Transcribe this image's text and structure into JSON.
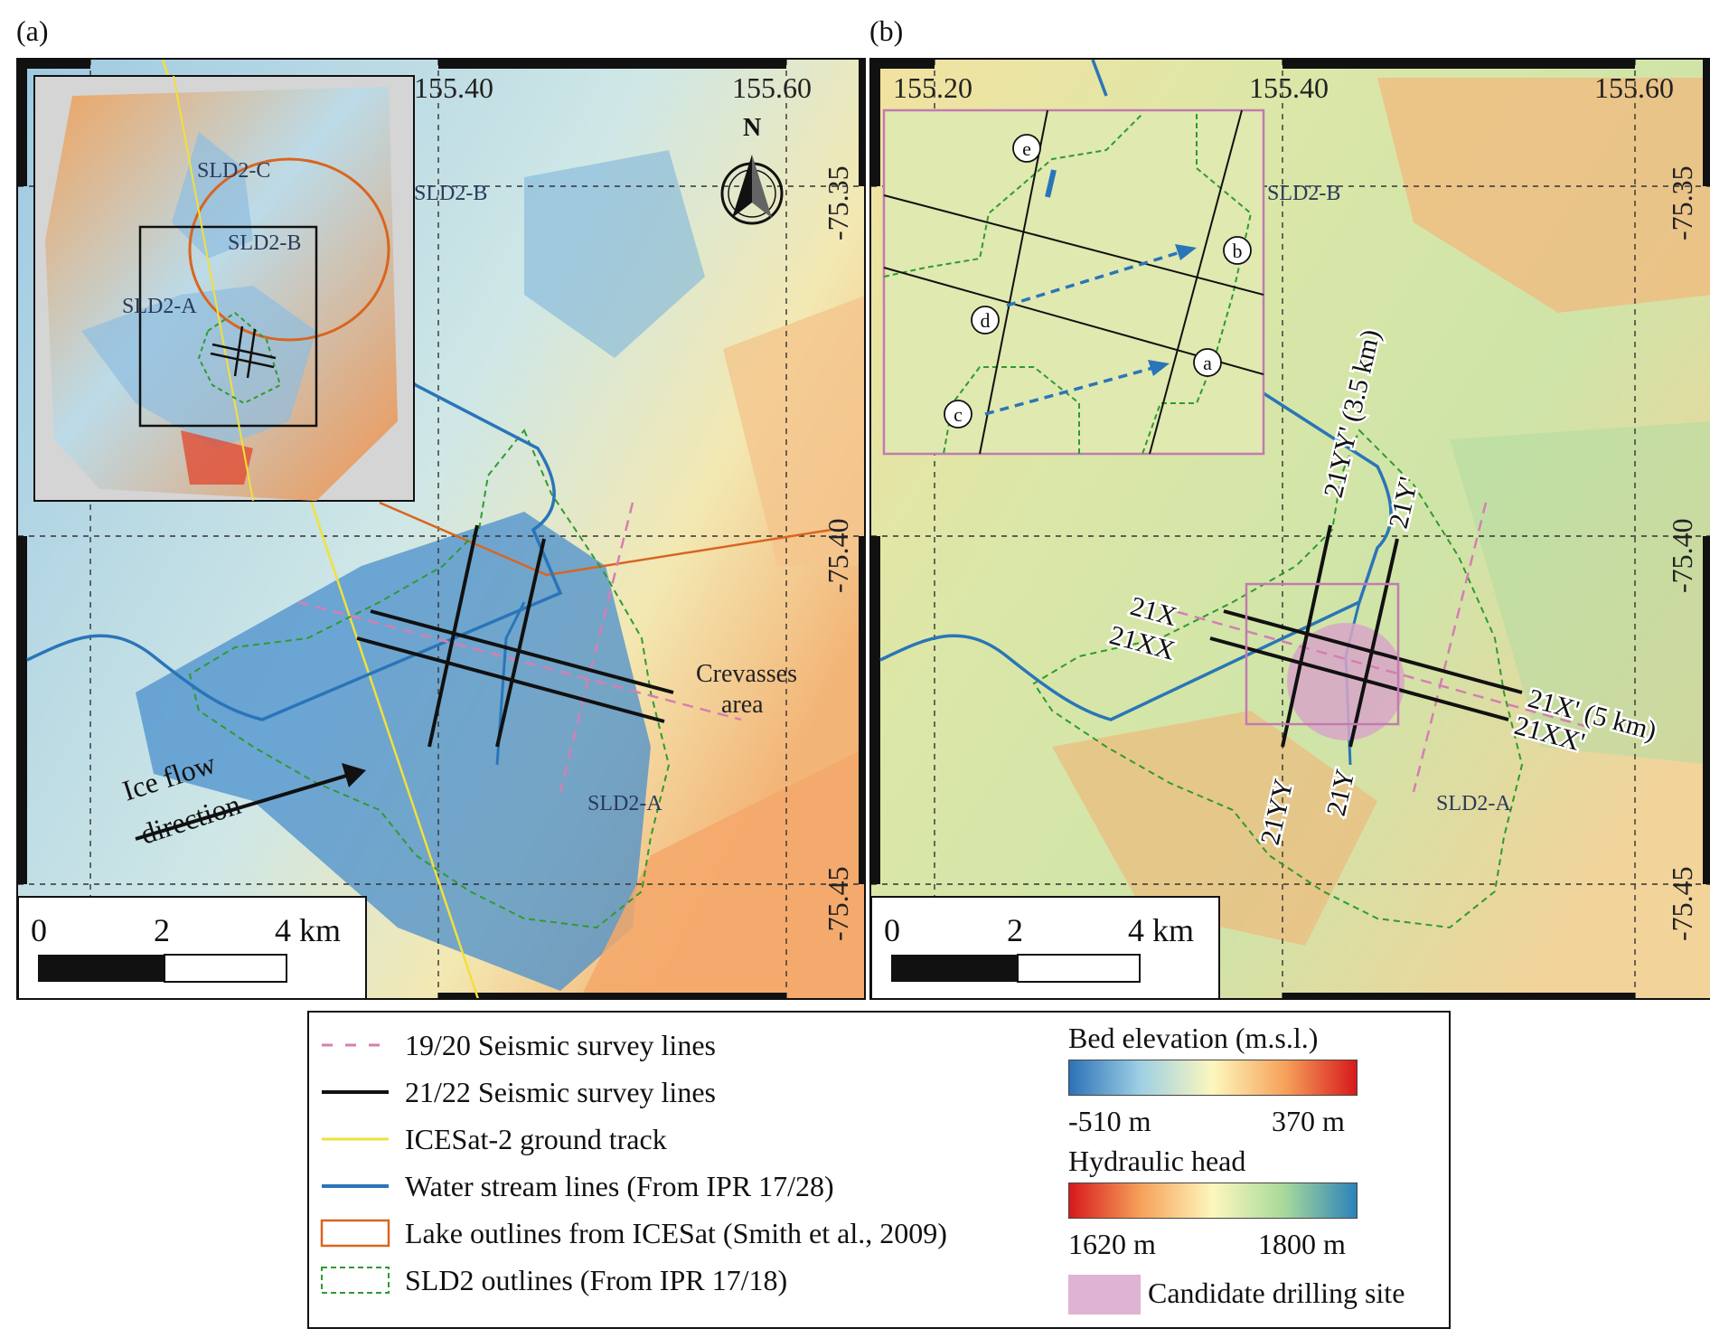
{
  "panels": {
    "a": {
      "label": "(a)",
      "lon_labels": [
        "155.40",
        "155.60"
      ],
      "lat_labels": [
        "-75.35",
        "-75.40",
        "-75.45"
      ],
      "lake_labels": [
        "SLD2-B",
        "SLD2-A"
      ],
      "inset_labels": [
        "SLD2-C",
        "SLD2-B",
        "SLD2-A"
      ],
      "crevasses": [
        "Crevasses",
        "area"
      ],
      "ice_flow": [
        "Ice flow",
        "direction"
      ],
      "north": "N",
      "scale": {
        "zero": "0",
        "mid": "2",
        "end": "4 km"
      }
    },
    "b": {
      "label": "(b)",
      "lon_labels": [
        "155.20",
        "155.40",
        "155.60"
      ],
      "lat_labels": [
        "-75.35",
        "-75.40",
        "-75.45"
      ],
      "lake_labels": [
        "SLD2-B",
        "SLD2-A"
      ],
      "line_labels": {
        "x": "21X",
        "xx": "21XX",
        "yy": "21YY",
        "y": "21Y",
        "yy_end": "21YY' (3.5 km)",
        "y_end": "21Y'",
        "x_end": "21X' (5 km)",
        "xx_end": "21XX'"
      },
      "inset_markers": [
        "e",
        "b",
        "d",
        "a",
        "c"
      ],
      "scale": {
        "zero": "0",
        "mid": "2",
        "end": "4 km"
      }
    }
  },
  "legend": {
    "items": [
      "19/20 Seismic survey lines",
      "21/22 Seismic survey lines",
      "ICESat-2 ground track",
      "Water stream lines (From IPR 17/28)",
      "Lake outlines from ICESat (Smith et al., 2009)",
      "SLD2 outlines (From IPR 17/18)"
    ],
    "bed": {
      "title": "Bed elevation (m.s.l.)",
      "min": "-510 m",
      "max": "370 m"
    },
    "head": {
      "title": "Hydraulic head",
      "min": "1620 m",
      "max": "1800 m"
    },
    "site": "Candidate drilling site"
  },
  "colors": {
    "seismic_1920": "#d47fb3",
    "seismic_2122": "#111111",
    "icesat2": "#f2e03a",
    "stream": "#2a75b8",
    "lake_icesat": "#d9651f",
    "sld2": "#2f9b2f",
    "drill_site": "#d8a6c8"
  }
}
